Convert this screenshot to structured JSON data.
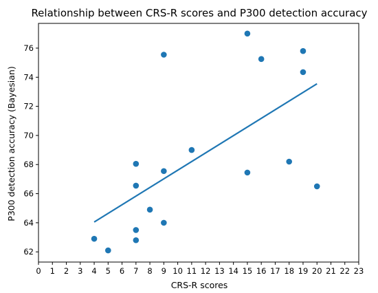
{
  "chart_data": {
    "type": "scatter",
    "title": "Relationship between CRS-R scores and P300 detection accuracy",
    "xlabel": "CRS-R scores",
    "ylabel": "P300 detection accuracy (Bayesian)",
    "xlim": [
      0,
      23
    ],
    "ylim": [
      61.3,
      77.7
    ],
    "xticks": [
      0,
      1,
      2,
      3,
      4,
      5,
      6,
      7,
      8,
      9,
      10,
      11,
      12,
      13,
      14,
      15,
      16,
      17,
      18,
      19,
      20,
      21,
      22,
      23
    ],
    "yticks": [
      62,
      64,
      66,
      68,
      70,
      72,
      74,
      76
    ],
    "grid": false,
    "colors": {
      "points": "#1f77b4",
      "trend": "#1f77b4"
    },
    "series": [
      {
        "points": [
          {
            "x": 4,
            "y": 62.9
          },
          {
            "x": 5,
            "y": 62.1
          },
          {
            "x": 7,
            "y": 68.05
          },
          {
            "x": 7,
            "y": 66.55
          },
          {
            "x": 7,
            "y": 63.5
          },
          {
            "x": 7,
            "y": 62.8
          },
          {
            "x": 8,
            "y": 64.9
          },
          {
            "x": 9,
            "y": 75.55
          },
          {
            "x": 9,
            "y": 67.55
          },
          {
            "x": 9,
            "y": 64.0
          },
          {
            "x": 11,
            "y": 69.0
          },
          {
            "x": 15,
            "y": 77.0
          },
          {
            "x": 15,
            "y": 67.45
          },
          {
            "x": 16,
            "y": 75.25
          },
          {
            "x": 18,
            "y": 68.2
          },
          {
            "x": 19,
            "y": 75.8
          },
          {
            "x": 19,
            "y": 74.35
          },
          {
            "x": 20,
            "y": 66.5
          }
        ]
      }
    ],
    "trendline": {
      "x": [
        4,
        20
      ],
      "y": [
        64.05,
        73.55
      ]
    }
  }
}
